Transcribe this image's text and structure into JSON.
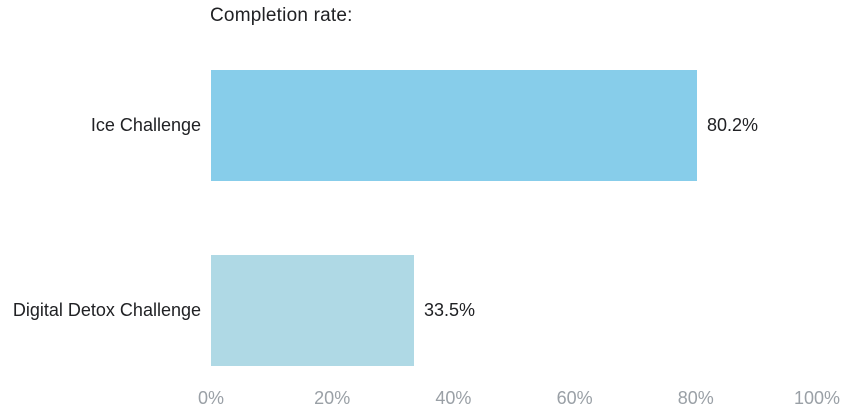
{
  "title": "Completion rate:",
  "chart_data": {
    "type": "bar",
    "orientation": "horizontal",
    "title": "Completion rate:",
    "xlabel": "",
    "ylabel": "",
    "categories": [
      "Ice Challenge",
      "Digital Detox Challenge"
    ],
    "values": [
      80.2,
      33.5
    ],
    "value_labels": [
      "80.2%",
      "33.5%"
    ],
    "bar_colors": [
      "#87CDEA",
      "#AFD9E5"
    ],
    "xlim": [
      0,
      100
    ],
    "x_tick_values": [
      0,
      20,
      40,
      60,
      80,
      100
    ],
    "x_tick_labels": [
      "0%",
      "20%",
      "40%",
      "60%",
      "80%",
      "100%"
    ],
    "grid": false,
    "legend": "none"
  },
  "colors": {
    "background": "#FFFFFF",
    "text_dark": "#202124",
    "tick_gray": "#9AA0A6"
  }
}
